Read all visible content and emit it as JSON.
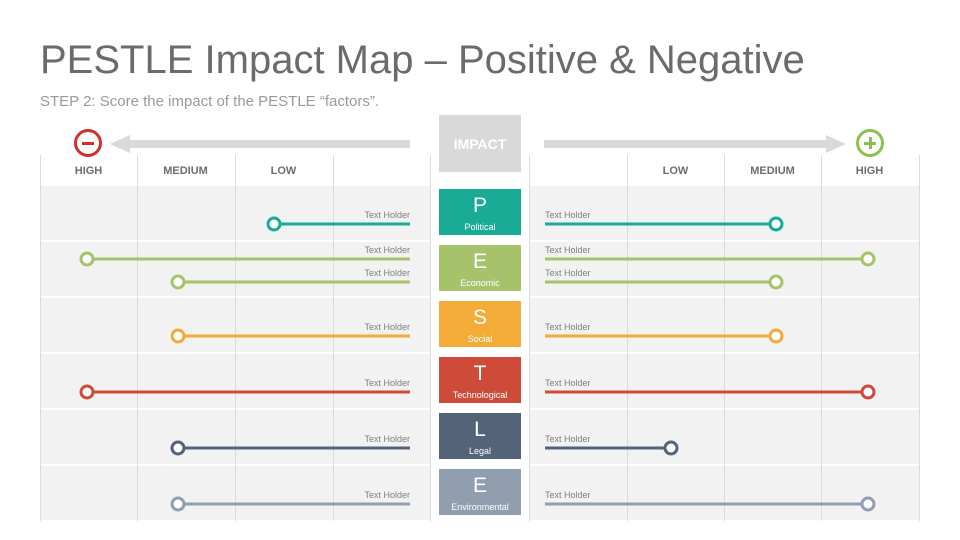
{
  "title": "PESTLE Impact Map – Positive & Negative",
  "subtitle": "STEP 2: Score the impact of the PESTLE “factors”.",
  "impact_label": "IMPACT",
  "left_labels": {
    "high": "HIGH",
    "medium": "MEDIUM",
    "low": "LOW"
  },
  "right_labels": {
    "low": "LOW",
    "medium": "MEDIUM",
    "high": "HIGH"
  },
  "colors": {
    "political": "#1aab96",
    "economic": "#a6c36b",
    "social": "#f3ac38",
    "technological": "#ce4b3a",
    "legal": "#546478",
    "environmental": "#909eaf",
    "negative": "#d0312d",
    "positive": "#8cc151",
    "neutral": "#d9d9d9"
  },
  "factors": [
    {
      "letter": "P",
      "name": "Political",
      "color_key": "political",
      "lines": [
        {
          "left_text": "Text Holder",
          "right_text": "Text Holder",
          "negative_level": "low",
          "positive_level": "medium"
        }
      ]
    },
    {
      "letter": "E",
      "name": "Economic",
      "color_key": "economic",
      "lines": [
        {
          "left_text": "Text Holder",
          "right_text": "Text Holder",
          "negative_level": "high",
          "positive_level": "high"
        },
        {
          "left_text": "Text Holder",
          "right_text": "Text Holder",
          "negative_level": "medium",
          "positive_level": "medium"
        }
      ]
    },
    {
      "letter": "S",
      "name": "Social",
      "color_key": "social",
      "lines": [
        {
          "left_text": "Text Holder",
          "right_text": "Text Holder",
          "negative_level": "medium",
          "positive_level": "medium"
        }
      ]
    },
    {
      "letter": "T",
      "name": "Technological",
      "color_key": "technological",
      "lines": [
        {
          "left_text": "Text Holder",
          "right_text": "Text Holder",
          "negative_level": "high",
          "positive_level": "high"
        }
      ]
    },
    {
      "letter": "L",
      "name": "Legal",
      "color_key": "legal",
      "lines": [
        {
          "left_text": "Text Holder",
          "right_text": "Text Holder",
          "negative_level": "medium",
          "positive_level": "low"
        }
      ]
    },
    {
      "letter": "E",
      "name": "Environmental",
      "color_key": "environmental",
      "lines": [
        {
          "left_text": "Text Holder",
          "right_text": "Text Holder",
          "negative_level": "medium",
          "positive_level": "high"
        }
      ]
    }
  ]
}
